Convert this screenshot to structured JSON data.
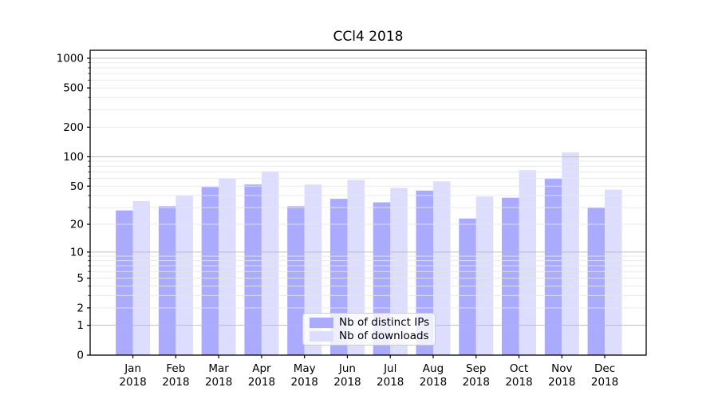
{
  "chart_data": {
    "type": "bar",
    "title": "CCl4 2018",
    "year": "2018",
    "categories": [
      "Jan",
      "Feb",
      "Mar",
      "Apr",
      "May",
      "Jun",
      "Jul",
      "Aug",
      "Sep",
      "Oct",
      "Nov",
      "Dec"
    ],
    "series": [
      {
        "name": "Nb of distinct IPs",
        "color": "#aaaaff",
        "values": [
          28,
          31,
          49,
          52,
          31,
          37,
          34,
          45,
          23,
          38,
          60,
          30
        ]
      },
      {
        "name": "Nb of downloads",
        "color": "#ddddff",
        "values": [
          35,
          40,
          60,
          71,
          52,
          58,
          48,
          56,
          39,
          73,
          111,
          46
        ]
      }
    ],
    "yscale": "log1p",
    "yticks": [
      0,
      1,
      2,
      5,
      10,
      20,
      50,
      100,
      200,
      500,
      1000
    ],
    "ylim": [
      0,
      1200
    ],
    "grid": true,
    "legend_position": "bottom-center"
  },
  "colors": {
    "background": "#ffffff",
    "spine": "#000000",
    "tick_text": "#000000",
    "grid_major": "#b9b9b9",
    "grid_minor": "#e6e6e6"
  }
}
